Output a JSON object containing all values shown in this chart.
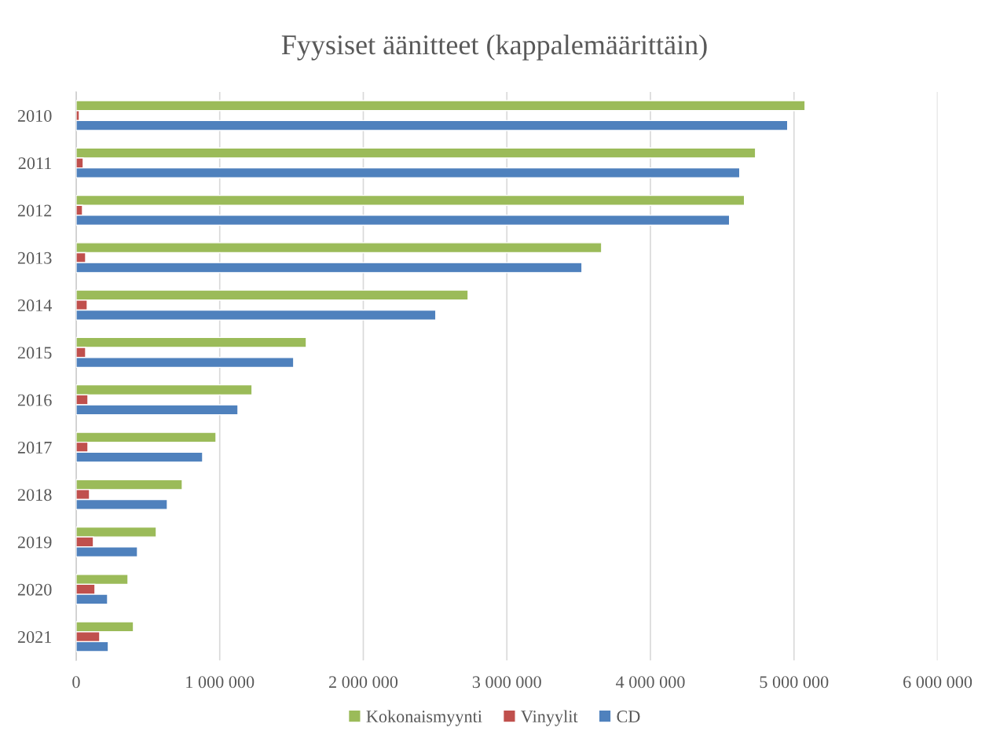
{
  "chart_data": {
    "type": "bar",
    "orientation": "horizontal",
    "title": "Fyysiset äänitteet (kappalemäärittäin)",
    "categories": [
      "2010",
      "2011",
      "2012",
      "2013",
      "2014",
      "2015",
      "2016",
      "2017",
      "2018",
      "2019",
      "2020",
      "2021"
    ],
    "series": [
      {
        "name": "Kokonaismyynti",
        "color": "#9bbb59",
        "values": [
          5077000,
          4732000,
          4655000,
          3660000,
          2730000,
          1603000,
          1225000,
          974000,
          739000,
          558000,
          361000,
          399000
        ]
      },
      {
        "name": "Vinyylit",
        "color": "#c0504d",
        "values": [
          22000,
          49000,
          44000,
          66000,
          77000,
          66000,
          82000,
          82000,
          93000,
          120000,
          131000,
          164000
        ]
      },
      {
        "name": "CD",
        "color": "#4f81bd",
        "values": [
          4956000,
          4622000,
          4551000,
          3523000,
          2505000,
          1515000,
          1127000,
          881000,
          635000,
          427000,
          219000,
          224000
        ]
      }
    ],
    "xlim": [
      0,
      6000000
    ],
    "xticks": [
      0,
      {
        "value": 1000000,
        "label": "1 000 000"
      },
      {
        "value": 2000000,
        "label": "2 000 000"
      },
      {
        "value": 3000000,
        "label": "3 000 000"
      },
      {
        "value": 4000000,
        "label": "4 000 000"
      },
      {
        "value": 5000000,
        "label": "5 000 000"
      },
      {
        "value": 6000000,
        "label": "6 000 000"
      }
    ],
    "grid": "x",
    "legend": "bottom"
  }
}
